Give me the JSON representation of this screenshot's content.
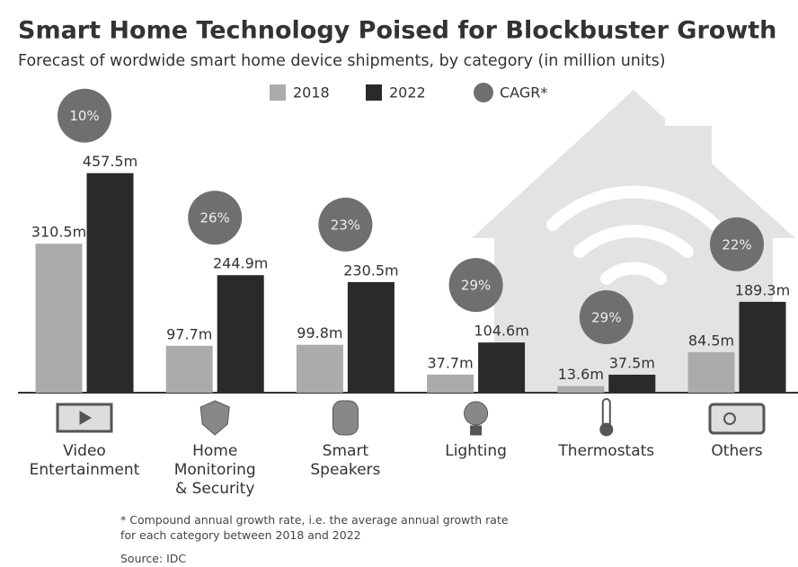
{
  "chart_data": {
    "type": "bar",
    "title": "Smart Home Technology Poised for Blockbuster Growth",
    "subtitle": "Forecast of wordwide smart home device shipments, by category (in million units)",
    "categories": [
      "Video\nEntertainment",
      "Home\nMonitoring\n& Security",
      "Smart\nSpeakers",
      "Lighting",
      "Thermostats",
      "Others"
    ],
    "series": [
      {
        "name": "2018",
        "color": "#ababab",
        "values": [
          310.5,
          97.7,
          99.8,
          37.7,
          13.6,
          84.5
        ],
        "value_labels": [
          "310.5m",
          "97.7m",
          "99.8m",
          "37.7m",
          "13.6m",
          "84.5m"
        ]
      },
      {
        "name": "2022",
        "color": "#2a2a2a",
        "values": [
          457.5,
          244.9,
          230.5,
          104.6,
          37.5,
          189.3
        ],
        "value_labels": [
          "457.5m",
          "244.9m",
          "230.5m",
          "104.6m",
          "37.5m",
          "189.3m"
        ]
      }
    ],
    "cagr": {
      "name": "CAGR*",
      "color": "#6f6f6f",
      "values": [
        10,
        26,
        23,
        29,
        29,
        22
      ],
      "value_labels": [
        "10%",
        "26%",
        "23%",
        "29%",
        "29%",
        "22%"
      ]
    },
    "ylim": [
      0,
      500
    ],
    "footnote": "* Compound annual growth rate, i.e. the average annual growth rate\nfor each category between 2018 and 2022",
    "source": "Source: IDC"
  }
}
